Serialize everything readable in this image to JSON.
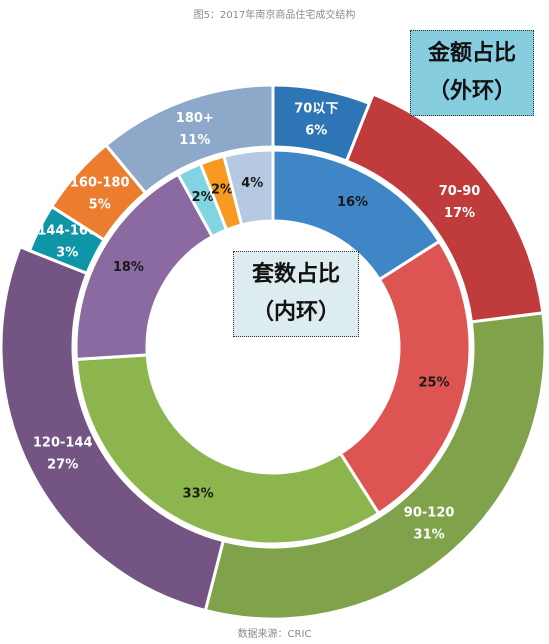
{
  "title": "图5：2017年南京商品住宅成交结构",
  "source": "数据来源：CRIC",
  "chart_data": {
    "type": "donut",
    "outer_label": {
      "line1": "金额占比",
      "line2": "（外环）"
    },
    "inner_label": {
      "line1": "套数占比",
      "line2": "（内环）"
    },
    "outer_ring": [
      {
        "name": "70以下",
        "value": 6,
        "pct": "6%",
        "color": "#2e75b6"
      },
      {
        "name": "70-90",
        "value": 17,
        "pct": "17%",
        "color": "#c03b3b"
      },
      {
        "name": "90-120",
        "value": 31,
        "pct": "31%",
        "color": "#7fa24a"
      },
      {
        "name": "120-144",
        "value": 27,
        "pct": "27%",
        "color": "#735482"
      },
      {
        "name": "144-160",
        "value": 3,
        "pct": "3%",
        "color": "#0f95a8"
      },
      {
        "name": "160-180",
        "value": 5,
        "pct": "5%",
        "color": "#ec7d2e"
      },
      {
        "name": "180+",
        "value": 11,
        "pct": "11%",
        "color": "#8ea8ca"
      }
    ],
    "inner_ring": [
      {
        "value": 16,
        "pct": "16%",
        "color": "#3e86c6"
      },
      {
        "value": 25,
        "pct": "25%",
        "color": "#dd5552"
      },
      {
        "value": 33,
        "pct": "33%",
        "color": "#8db54d"
      },
      {
        "value": 18,
        "pct": "18%",
        "color": "#8a6aa0"
      },
      {
        "value": 2,
        "pct": "2%",
        "color": "#82d4e3"
      },
      {
        "value": 2,
        "pct": "2%",
        "color": "#f79a1f"
      },
      {
        "value": 4,
        "pct": "4%",
        "color": "#b5cae2"
      }
    ]
  }
}
